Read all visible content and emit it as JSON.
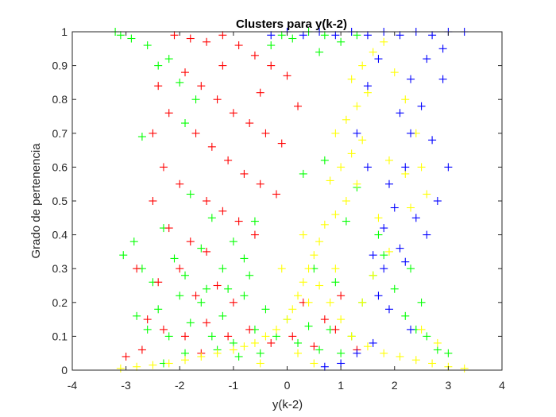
{
  "chart_data": {
    "type": "scatter",
    "title": "Clusters para  y(k-2)",
    "xlabel": "y(k-2)",
    "ylabel": "Grado de pertenencia",
    "xlim": [
      -4,
      4
    ],
    "ylim": [
      0,
      1
    ],
    "xticks": [
      "-4",
      "-3",
      "-2",
      "-1",
      "0",
      "1",
      "2",
      "3",
      "4"
    ],
    "yticks": [
      "0",
      "0.1",
      "0.2",
      "0.3",
      "0.4",
      "0.5",
      "0.6",
      "0.7",
      "0.8",
      "0.9",
      "1"
    ],
    "grid": false,
    "legend": "none",
    "marker": "+",
    "series": [
      {
        "color": "#00ff00",
        "points": [
          [
            -3.2,
            1.0
          ],
          [
            -3.1,
            0.99
          ],
          [
            -2.9,
            0.98
          ],
          [
            -2.7,
            0.69
          ],
          [
            -2.6,
            0.96
          ],
          [
            -2.4,
            0.9
          ],
          [
            -2.2,
            0.92
          ],
          [
            -2.0,
            0.85
          ],
          [
            -1.9,
            0.73
          ],
          [
            -1.7,
            0.8
          ],
          [
            -3.05,
            0.34
          ],
          [
            -2.85,
            0.38
          ],
          [
            -2.7,
            0.3
          ],
          [
            -2.5,
            0.26
          ],
          [
            -2.3,
            0.42
          ],
          [
            -2.1,
            0.33
          ],
          [
            -1.9,
            0.28
          ],
          [
            -1.8,
            0.52
          ],
          [
            -1.6,
            0.36
          ],
          [
            -1.4,
            0.45
          ],
          [
            -1.2,
            0.3
          ],
          [
            -1.0,
            0.38
          ],
          [
            -0.8,
            0.33
          ],
          [
            -0.6,
            0.44
          ],
          [
            -2.8,
            0.16
          ],
          [
            -2.6,
            0.12
          ],
          [
            -2.4,
            0.18
          ],
          [
            -2.2,
            0.1
          ],
          [
            -2.0,
            0.22
          ],
          [
            -1.8,
            0.14
          ],
          [
            -1.6,
            0.2
          ],
          [
            -1.4,
            0.1
          ],
          [
            -1.2,
            0.16
          ],
          [
            -1.0,
            0.08
          ],
          [
            -0.8,
            0.22
          ],
          [
            -0.6,
            0.12
          ],
          [
            -0.4,
            0.18
          ],
          [
            -0.2,
            0.1
          ],
          [
            0.0,
            0.15
          ],
          [
            0.2,
            0.08
          ],
          [
            0.4,
            0.13
          ],
          [
            0.6,
            0.06
          ],
          [
            0.8,
            0.12
          ],
          [
            1.0,
            0.05
          ],
          [
            1.2,
            0.1
          ],
          [
            1.4,
            0.2
          ],
          [
            1.6,
            0.28
          ],
          [
            1.8,
            0.34
          ],
          [
            2.0,
            0.24
          ],
          [
            2.2,
            0.16
          ],
          [
            2.4,
            0.12
          ],
          [
            2.6,
            0.1
          ],
          [
            2.8,
            0.06
          ],
          [
            3.0,
            0.05
          ],
          [
            -1.5,
            0.24
          ],
          [
            -1.3,
            0.06
          ],
          [
            -0.9,
            0.04
          ],
          [
            -0.5,
            0.05
          ],
          [
            0.5,
            0.3
          ],
          [
            0.9,
            0.26
          ],
          [
            1.1,
            0.44
          ],
          [
            1.3,
            0.54
          ],
          [
            0.7,
            0.62
          ],
          [
            0.3,
            0.58
          ],
          [
            -0.1,
            0.99
          ],
          [
            0.1,
            0.98
          ],
          [
            0.4,
            1.0
          ],
          [
            0.7,
            0.99
          ],
          [
            1.0,
            0.97
          ],
          [
            1.3,
            0.99
          ],
          [
            -0.3,
            0.96
          ],
          [
            0.6,
            0.94
          ],
          [
            -2.3,
            0.02
          ],
          [
            -1.9,
            0.05
          ],
          [
            -1.1,
            0.24
          ],
          [
            -0.7,
            0.28
          ],
          [
            1.7,
            0.4
          ],
          [
            2.3,
            0.3
          ],
          [
            2.5,
            0.2
          ]
        ]
      },
      {
        "color": "#ff0000",
        "points": [
          [
            -2.1,
            0.99
          ],
          [
            -1.8,
            0.98
          ],
          [
            -1.5,
            0.97
          ],
          [
            -1.2,
            0.99
          ],
          [
            -0.9,
            0.96
          ],
          [
            -0.6,
            0.93
          ],
          [
            -0.3,
            0.9
          ],
          [
            0.0,
            0.87
          ],
          [
            -1.9,
            0.88
          ],
          [
            -1.6,
            0.84
          ],
          [
            -1.3,
            0.8
          ],
          [
            -1.0,
            0.76
          ],
          [
            -0.7,
            0.73
          ],
          [
            -0.4,
            0.7
          ],
          [
            -0.1,
            0.67
          ],
          [
            -1.7,
            0.7
          ],
          [
            -1.4,
            0.66
          ],
          [
            -1.1,
            0.62
          ],
          [
            -0.8,
            0.58
          ],
          [
            -0.5,
            0.55
          ],
          [
            -0.2,
            0.52
          ],
          [
            -2.3,
            0.6
          ],
          [
            -2.0,
            0.55
          ],
          [
            -1.5,
            0.5
          ],
          [
            -1.2,
            0.47
          ],
          [
            -0.9,
            0.44
          ],
          [
            -0.6,
            0.4
          ],
          [
            -2.5,
            0.5
          ],
          [
            -2.2,
            0.42
          ],
          [
            -1.8,
            0.38
          ],
          [
            -1.5,
            0.35
          ],
          [
            -2.8,
            0.3
          ],
          [
            -2.4,
            0.26
          ],
          [
            -2.0,
            0.3
          ],
          [
            -1.7,
            0.22
          ],
          [
            -1.3,
            0.25
          ],
          [
            -1.0,
            0.2
          ],
          [
            -2.6,
            0.15
          ],
          [
            -2.3,
            0.12
          ],
          [
            -1.9,
            0.1
          ],
          [
            -1.5,
            0.14
          ],
          [
            -1.1,
            0.1
          ],
          [
            -0.7,
            0.12
          ],
          [
            -0.3,
            0.08
          ],
          [
            0.1,
            0.1
          ],
          [
            0.5,
            0.07
          ],
          [
            0.9,
            0.12
          ],
          [
            1.3,
            0.06
          ],
          [
            -2.7,
            0.06
          ],
          [
            -3.0,
            0.04
          ],
          [
            -1.6,
            0.05
          ],
          [
            0.3,
            0.2
          ],
          [
            0.7,
            0.15
          ],
          [
            1.0,
            0.22
          ],
          [
            -1.2,
            0.9
          ],
          [
            -0.5,
            0.82
          ],
          [
            0.2,
            0.78
          ],
          [
            -2.4,
            0.84
          ],
          [
            -2.2,
            0.76
          ],
          [
            -2.5,
            0.7
          ]
        ]
      },
      {
        "color": "#ffff00",
        "points": [
          [
            1.8,
            0.97
          ],
          [
            1.6,
            0.94
          ],
          [
            1.4,
            0.9
          ],
          [
            1.2,
            0.86
          ],
          [
            1.5,
            0.82
          ],
          [
            1.3,
            0.78
          ],
          [
            1.1,
            0.74
          ],
          [
            0.9,
            0.7
          ],
          [
            1.4,
            0.68
          ],
          [
            1.2,
            0.64
          ],
          [
            1.0,
            0.6
          ],
          [
            0.8,
            0.56
          ],
          [
            1.3,
            0.55
          ],
          [
            1.1,
            0.5
          ],
          [
            0.9,
            0.46
          ],
          [
            0.7,
            0.43
          ],
          [
            0.6,
            0.38
          ],
          [
            0.5,
            0.34
          ],
          [
            0.4,
            0.3
          ],
          [
            0.3,
            0.26
          ],
          [
            0.2,
            0.22
          ],
          [
            0.1,
            0.18
          ],
          [
            0.0,
            0.15
          ],
          [
            -0.2,
            0.12
          ],
          [
            -0.4,
            0.1
          ],
          [
            -0.6,
            0.08
          ],
          [
            -0.8,
            0.07
          ],
          [
            -1.0,
            0.06
          ],
          [
            -1.3,
            0.05
          ],
          [
            -1.6,
            0.04
          ],
          [
            -1.9,
            0.03
          ],
          [
            -2.2,
            0.02
          ],
          [
            -2.5,
            0.015
          ],
          [
            -2.8,
            0.01
          ],
          [
            -3.1,
            0.005
          ],
          [
            0.8,
            0.2
          ],
          [
            1.0,
            0.15
          ],
          [
            1.2,
            0.1
          ],
          [
            1.5,
            0.07
          ],
          [
            1.8,
            0.05
          ],
          [
            2.1,
            0.04
          ],
          [
            2.4,
            0.03
          ],
          [
            2.7,
            0.02
          ],
          [
            3.0,
            0.01
          ],
          [
            3.3,
            0.005
          ],
          [
            2.0,
            0.88
          ],
          [
            2.2,
            0.8
          ],
          [
            2.4,
            0.7
          ],
          [
            2.5,
            0.6
          ],
          [
            2.6,
            0.52
          ],
          [
            2.2,
            0.58
          ],
          [
            1.9,
            0.62
          ],
          [
            1.7,
            0.45
          ],
          [
            1.9,
            0.35
          ],
          [
            1.6,
            0.28
          ],
          [
            2.3,
            0.48
          ],
          [
            0.6,
            0.25
          ],
          [
            0.4,
            0.2
          ],
          [
            -0.1,
            0.3
          ],
          [
            0.3,
            0.4
          ],
          [
            0.9,
            0.3
          ],
          [
            1.4,
            0.2
          ],
          [
            2.8,
            0.08
          ],
          [
            2.5,
            0.12
          ],
          [
            0.2,
            0.05
          ],
          [
            0.5,
            0.02
          ],
          [
            -0.5,
            0.02
          ]
        ]
      },
      {
        "color": "#0000ff",
        "points": [
          [
            -0.3,
            0.99
          ],
          [
            0.0,
            1.0
          ],
          [
            0.3,
            0.99
          ],
          [
            0.6,
            1.0
          ],
          [
            0.9,
            0.99
          ],
          [
            1.2,
            1.0
          ],
          [
            1.5,
            0.99
          ],
          [
            1.8,
            1.0
          ],
          [
            2.1,
            0.99
          ],
          [
            2.4,
            1.0
          ],
          [
            2.7,
            0.99
          ],
          [
            3.0,
            1.0
          ],
          [
            3.3,
            1.0
          ],
          [
            2.9,
            0.95
          ],
          [
            2.6,
            0.92
          ],
          [
            2.9,
            0.86
          ],
          [
            2.3,
            0.86
          ],
          [
            2.5,
            0.78
          ],
          [
            2.1,
            0.76
          ],
          [
            2.3,
            0.7
          ],
          [
            2.7,
            0.68
          ],
          [
            2.2,
            0.6
          ],
          [
            1.9,
            0.55
          ],
          [
            2.0,
            0.48
          ],
          [
            2.4,
            0.45
          ],
          [
            2.6,
            0.4
          ],
          [
            1.8,
            0.42
          ],
          [
            2.1,
            0.36
          ],
          [
            1.6,
            0.34
          ],
          [
            1.8,
            0.3
          ],
          [
            2.2,
            0.32
          ],
          [
            1.7,
            0.22
          ],
          [
            1.9,
            0.18
          ],
          [
            2.3,
            0.12
          ],
          [
            1.6,
            0.08
          ],
          [
            1.3,
            0.05
          ],
          [
            1.0,
            0.02
          ],
          [
            0.7,
            0.01
          ],
          [
            2.8,
            0.5
          ],
          [
            3.0,
            0.6
          ],
          [
            1.5,
            0.6
          ],
          [
            1.3,
            0.7
          ],
          [
            1.5,
            0.84
          ],
          [
            1.7,
            0.92
          ]
        ]
      }
    ]
  }
}
